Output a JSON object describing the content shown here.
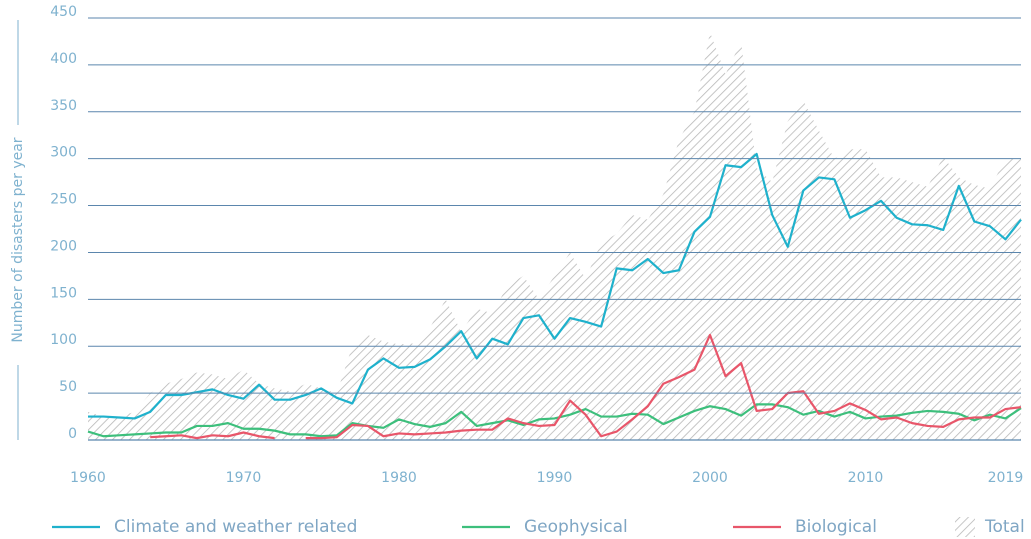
{
  "chart_data": {
    "type": "line",
    "ylabel": "Number of disasters per year",
    "x": [
      1960,
      1961,
      1962,
      1963,
      1964,
      1965,
      1966,
      1967,
      1968,
      1969,
      1970,
      1971,
      1972,
      1973,
      1974,
      1975,
      1976,
      1977,
      1978,
      1979,
      1980,
      1981,
      1982,
      1983,
      1984,
      1985,
      1986,
      1987,
      1988,
      1989,
      1990,
      1991,
      1992,
      1993,
      1994,
      1995,
      1996,
      1997,
      1998,
      1999,
      2000,
      2001,
      2002,
      2003,
      2004,
      2005,
      2006,
      2007,
      2008,
      2009,
      2010,
      2011,
      2012,
      2013,
      2014,
      2015,
      2016,
      2017,
      2018,
      2019,
      2020
    ],
    "xlim": [
      1960,
      2020
    ],
    "xticks": [
      1960,
      1970,
      1980,
      1990,
      2000,
      2010,
      2019
    ],
    "ylim": [
      0,
      450
    ],
    "yticks": [
      0,
      50,
      100,
      150,
      200,
      250,
      300,
      350,
      400,
      450
    ],
    "grid": true,
    "series": [
      {
        "name": "Climate and weather related",
        "color": "#1fb1cc",
        "values": [
          25,
          25,
          24,
          23,
          30,
          48,
          48,
          51,
          54,
          48,
          44,
          59,
          43,
          43,
          48,
          55,
          45,
          39,
          75,
          87,
          77,
          78,
          86,
          100,
          116,
          87,
          108,
          102,
          130,
          133,
          108,
          130,
          126,
          121,
          183,
          181,
          193,
          178,
          181,
          222,
          238,
          293,
          291,
          305,
          240,
          206,
          266,
          280,
          278,
          237,
          245,
          255,
          237,
          230,
          229,
          224,
          271,
          233,
          228,
          214,
          235
        ]
      },
      {
        "name": "Geophysical",
        "color": "#3dbf7c",
        "values": [
          9,
          4,
          5,
          6,
          7,
          8,
          8,
          15,
          15,
          18,
          12,
          12,
          10,
          6,
          6,
          4,
          5,
          18,
          15,
          13,
          22,
          17,
          14,
          18,
          30,
          15,
          18,
          21,
          16,
          22,
          23,
          27,
          33,
          25,
          25,
          28,
          27,
          17,
          24,
          31,
          36,
          33,
          26,
          38,
          38,
          35,
          27,
          31,
          25,
          30,
          23,
          25,
          26,
          29,
          31,
          30,
          28,
          21,
          27,
          23,
          34
        ]
      },
      {
        "name": "Biological",
        "color": "#e8566a",
        "values": [
          null,
          null,
          null,
          null,
          3,
          4,
          5,
          2,
          5,
          4,
          8,
          4,
          2,
          null,
          2,
          2,
          3,
          16,
          15,
          4,
          7,
          6,
          7,
          8,
          10,
          11,
          11,
          23,
          18,
          15,
          16,
          42,
          27,
          4,
          9,
          22,
          36,
          60,
          67,
          75,
          112,
          68,
          82,
          31,
          33,
          50,
          52,
          28,
          31,
          39,
          32,
          22,
          24,
          18,
          15,
          14,
          22,
          24,
          24,
          33,
          35
        ]
      },
      {
        "name": "Total",
        "color": "#b5b5b5",
        "area": true,
        "values": [
          30,
          25,
          25,
          30,
          50,
          60,
          65,
          72,
          70,
          65,
          75,
          60,
          55,
          52,
          60,
          55,
          50,
          100,
          112,
          105,
          102,
          103,
          120,
          150,
          115,
          140,
          135,
          165,
          175,
          150,
          175,
          200,
          172,
          210,
          220,
          240,
          235,
          262,
          320,
          350,
          435,
          390,
          425,
          290,
          275,
          340,
          362,
          330,
          300,
          310,
          310,
          280,
          280,
          275,
          270,
          302,
          280,
          272,
          268,
          300,
          300
        ]
      }
    ]
  }
}
